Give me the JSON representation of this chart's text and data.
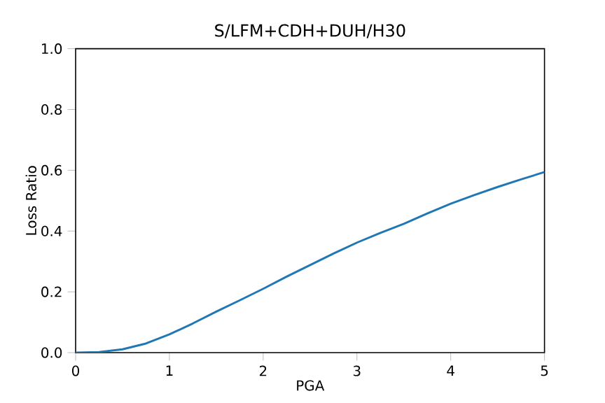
{
  "chart_data": {
    "type": "line",
    "title": "S/LFM+CDH+DUH/H30",
    "xlabel": "PGA",
    "ylabel": "Loss Ratio",
    "x": [
      0,
      0.25,
      0.5,
      0.75,
      1,
      1.25,
      1.5,
      1.75,
      2,
      2.25,
      2.5,
      2.75,
      3,
      3.25,
      3.5,
      3.75,
      4,
      4.25,
      4.5,
      4.75,
      5
    ],
    "series": [
      {
        "color": "#1f77b4",
        "values": [
          0,
          0.002,
          0.011,
          0.03,
          0.06,
          0.096,
          0.135,
          0.172,
          0.21,
          0.25,
          0.288,
          0.326,
          0.362,
          0.394,
          0.424,
          0.458,
          0.49,
          0.518,
          0.545,
          0.57,
          0.594
        ]
      }
    ],
    "xlim": [
      0,
      5
    ],
    "ylim": [
      0,
      1
    ],
    "xticks": [
      0,
      1,
      2,
      3,
      4,
      5
    ],
    "yticks": [
      {
        "value": 0,
        "label": "0.0"
      },
      0.2,
      0.4,
      0.6,
      0.8,
      {
        "value": 1,
        "label": "1.0"
      }
    ]
  }
}
